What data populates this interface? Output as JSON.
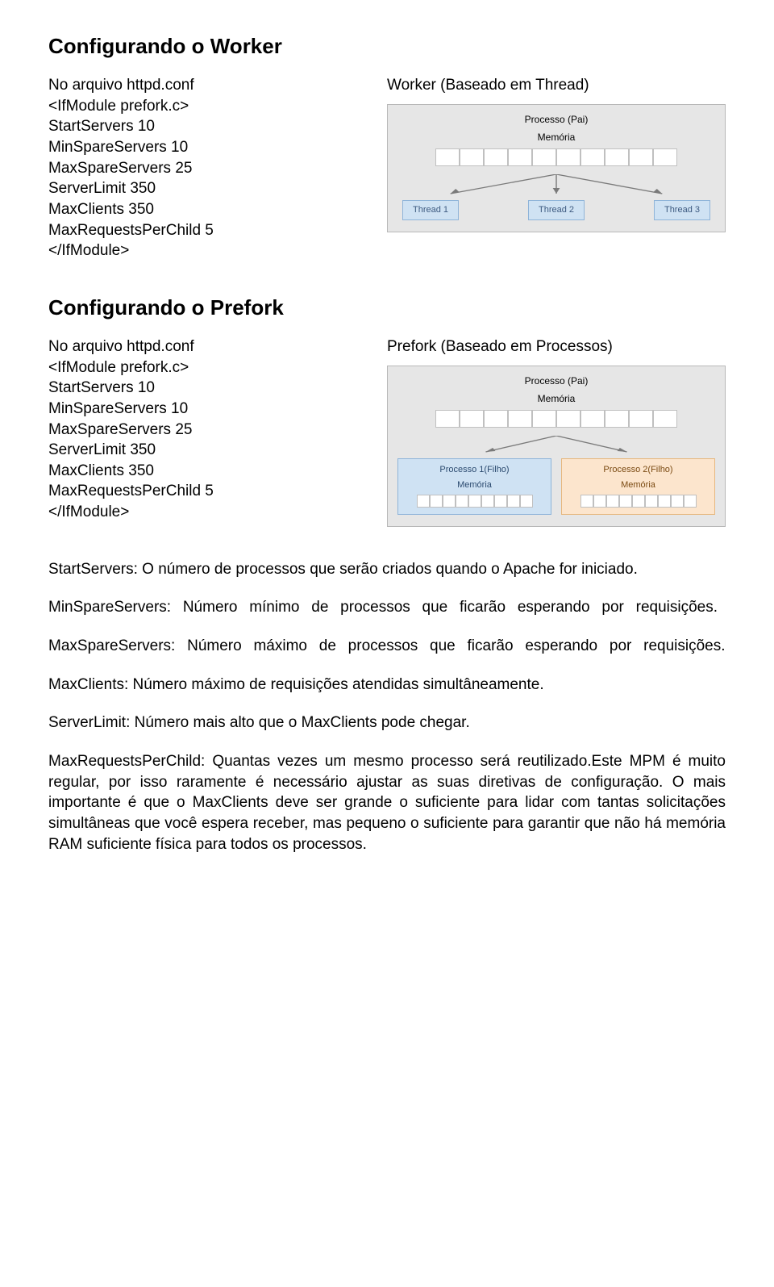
{
  "section1": {
    "title": "Configurando o Worker",
    "left_lines": [
      "No arquivo httpd.conf",
      "",
      "<IfModule prefork.c>",
      "StartServers 10",
      "MinSpareServers 10",
      "MaxSpareServers 25",
      "ServerLimit 350",
      "MaxClients 350",
      "MaxRequestsPerChild 5",
      "</IfModule>"
    ],
    "right_label": "Worker (Baseado em Thread)",
    "diagram": {
      "title": "Processo (Pai)",
      "subtitle": "Memória",
      "mem_cells": 10,
      "threads": [
        "Thread 1",
        "Thread 2",
        "Thread 3"
      ],
      "bg": "#e6e6e6",
      "border": "#b8b8b8",
      "cell_bg": "#ffffff",
      "cell_border": "#c0c0c0",
      "thread_bg": "#cfe2f3",
      "thread_border": "#8fb4d9",
      "thread_text": "#3d5a80",
      "arrow_color": "#7a7a7a"
    }
  },
  "section2": {
    "title": "Configurando o Prefork",
    "left_lines": [
      "No arquivo httpd.conf",
      "",
      "<IfModule prefork.c>",
      "StartServers 10",
      "MinSpareServers 10",
      "MaxSpareServers 25",
      "ServerLimit 350",
      "MaxClients 350",
      "MaxRequestsPerChild 5",
      "</IfModule>"
    ],
    "right_label": "Prefork (Baseado em Processos)",
    "diagram": {
      "title": "Processo (Pai)",
      "subtitle": "Memória",
      "mem_cells": 10,
      "processes": [
        {
          "title": "Processo 1(Filho)",
          "sub": "Memória",
          "cells": 9,
          "bg": "#cfe2f3",
          "border": "#8fb4d9",
          "text": "#2b4a6f"
        },
        {
          "title": "Processo 2(Filho)",
          "sub": "Memória",
          "cells": 9,
          "bg": "#fce5cd",
          "border": "#e6b77e",
          "text": "#7a4a12"
        }
      ],
      "bg": "#e6e6e6",
      "border": "#b8b8b8",
      "cell_bg": "#ffffff",
      "cell_border": "#c0c0c0",
      "arrow_color": "#7a7a7a"
    }
  },
  "definitions": [
    "StartServers: O número de processos que serão criados quando o Apache for iniciado.",
    "MinSpareServers: Número mínimo de processos que ficarão esperando por requisições.",
    "MaxSpareServers: Número máximo de processos que ficarão esperando por requisições.",
    "MaxClients: Número máximo de requisições atendidas simultâneamente.",
    "ServerLimit: Número mais alto que o MaxClients pode chegar.",
    "MaxRequestsPerChild: Quantas vezes um mesmo processo será reutilizado.Este MPM é muito regular, por isso raramente é necessário ajustar as suas diretivas de configuração. O mais importante é que o MaxClients deve ser grande o suficiente para lidar com tantas solicitações simultâneas que você espera receber, mas pequeno o suficiente para garantir que não há memória RAM suficiente física para todos os processos."
  ]
}
